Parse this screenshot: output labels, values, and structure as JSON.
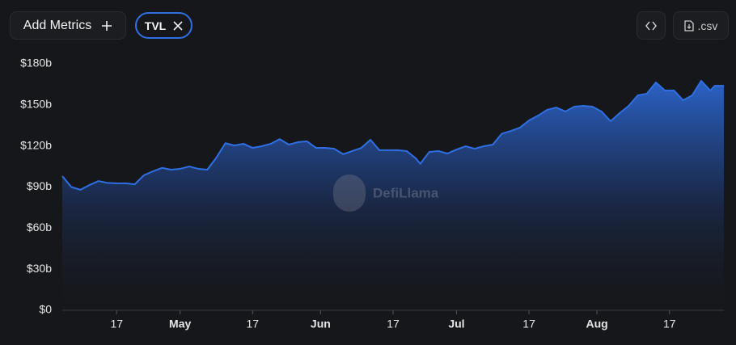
{
  "ui": {
    "add_metrics": "Add Metrics",
    "csv": ".csv",
    "watermark": "DefiLlama"
  },
  "chart_data": {
    "type": "area",
    "x": [
      "04-05",
      "04-07",
      "04-09",
      "04-11",
      "04-13",
      "04-15",
      "04-17",
      "04-19",
      "04-21",
      "04-23",
      "04-25",
      "04-27",
      "04-29",
      "05-01",
      "05-03",
      "05-05",
      "05-07",
      "05-09",
      "05-11",
      "05-13",
      "05-15",
      "05-17",
      "05-19",
      "05-21",
      "05-23",
      "05-25",
      "05-27",
      "05-29",
      "05-31",
      "06-02",
      "06-04",
      "06-06",
      "06-08",
      "06-10",
      "06-12",
      "06-14",
      "06-16",
      "06-18",
      "06-20",
      "06-22",
      "06-23",
      "06-25",
      "06-27",
      "06-29",
      "07-01",
      "07-03",
      "07-05",
      "07-07",
      "07-09",
      "07-11",
      "07-13",
      "07-15",
      "07-17",
      "07-19",
      "07-21",
      "07-23",
      "07-25",
      "07-27",
      "07-29",
      "07-31",
      "08-02",
      "08-04",
      "08-06",
      "08-08",
      "08-10",
      "08-12",
      "08-14",
      "08-16",
      "08-18",
      "08-20",
      "08-22",
      "08-24",
      "08-26",
      "08-27",
      "08-29"
    ],
    "series": [
      {
        "name": "TVL",
        "color": "#2f6fe4",
        "values": [
          98,
          90,
          88,
          91.5,
          94.4,
          93,
          92.7,
          92.7,
          92,
          98.6,
          101.5,
          104,
          102.7,
          103.3,
          105,
          103.3,
          102.7,
          111.5,
          122,
          120.4,
          121.6,
          118.6,
          119.8,
          121.6,
          125,
          121,
          122.8,
          123.4,
          118.6,
          118.6,
          118,
          114,
          116.3,
          118.6,
          124.5,
          116.9,
          116.9,
          116.9,
          116.3,
          111,
          107,
          115.7,
          116.3,
          114.5,
          117.4,
          119.8,
          118,
          119.8,
          121,
          129,
          131,
          133.4,
          138.7,
          142.2,
          146.4,
          148.1,
          145.2,
          148.7,
          149.3,
          148.7,
          145.2,
          138.1,
          144,
          149.3,
          157,
          158.2,
          166.4,
          160.5,
          160.5,
          153.4,
          157,
          167.6,
          160.5,
          164,
          164
        ]
      }
    ],
    "xlim": [
      "04-05",
      "08-29"
    ],
    "xticks": [
      {
        "value": "04-17",
        "label": "17"
      },
      {
        "value": "05-01",
        "label": "May"
      },
      {
        "value": "05-17",
        "label": "17"
      },
      {
        "value": "06-01",
        "label": "Jun"
      },
      {
        "value": "06-17",
        "label": "17"
      },
      {
        "value": "07-01",
        "label": "Jul"
      },
      {
        "value": "07-17",
        "label": "17"
      },
      {
        "value": "08-01",
        "label": "Aug"
      },
      {
        "value": "08-17",
        "label": "17"
      }
    ],
    "ylim": [
      0,
      180
    ],
    "yticks": [
      {
        "value": 0,
        "label": "$0"
      },
      {
        "value": 30,
        "label": "$30b"
      },
      {
        "value": 60,
        "label": "$60b"
      },
      {
        "value": 90,
        "label": "$90b"
      },
      {
        "value": 120,
        "label": "$120b"
      },
      {
        "value": 150,
        "label": "$150b"
      },
      {
        "value": 180,
        "label": "$180b"
      }
    ],
    "grid": false
  }
}
